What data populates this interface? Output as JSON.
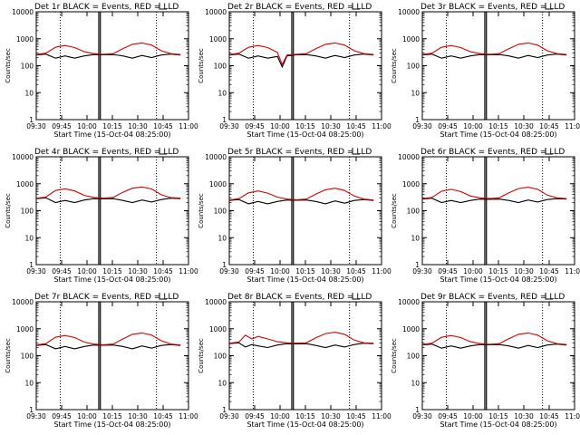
{
  "colors": {
    "events": "#000000",
    "lld": "#d40000",
    "frame": "#000000",
    "background": "#ffffff"
  },
  "common": {
    "xlabel": "Start Time (15-Oct-04 08:25:00)",
    "ylabel": "Counts/sec",
    "y_ticks": [
      "1",
      "10",
      "100",
      "1000",
      "10000"
    ],
    "x_ticks_a": [
      "09:30",
      "09:45",
      "10:00",
      "10:15",
      "10:30",
      "10:45",
      "11:00"
    ],
    "x_ticks_b": [
      "09:30",
      "09:45",
      "10:00",
      "10:15",
      "10:30",
      "10:45",
      "11:00"
    ]
  },
  "chart_data": [
    {
      "type": "line",
      "title": "Det 1r BLACK = Events, RED = LLD",
      "tickset": "x_ticks_a",
      "yscale": "log",
      "ylim": [
        1,
        10000
      ],
      "xlim_minutes": [
        570,
        665
      ],
      "vlines_dotted": [
        "09:45",
        "10:45"
      ],
      "vlines_solid": [
        "10:09",
        "10:10"
      ],
      "series": [
        {
          "name": "Events",
          "color": "#000000",
          "x": [
            "09:30",
            "09:36",
            "09:42",
            "09:48",
            "09:54",
            "10:00",
            "10:06",
            "10:12",
            "10:18",
            "10:24",
            "10:30",
            "10:36",
            "10:42",
            "10:48",
            "10:54",
            "11:00"
          ],
          "values": [
            250,
            270,
            190,
            230,
            190,
            230,
            260,
            255,
            260,
            230,
            190,
            240,
            200,
            250,
            270,
            250
          ]
        },
        {
          "name": "LLD",
          "color": "#d40000",
          "x": [
            "09:30",
            "09:36",
            "09:42",
            "09:48",
            "09:54",
            "10:00",
            "10:06",
            "10:12",
            "10:18",
            "10:24",
            "10:30",
            "10:36",
            "10:42",
            "10:48",
            "10:54",
            "11:00"
          ],
          "values": [
            260,
            290,
            480,
            560,
            470,
            330,
            280,
            265,
            280,
            430,
            620,
            700,
            580,
            360,
            280,
            260
          ]
        }
      ]
    },
    {
      "type": "line",
      "title": "Det 2r BLACK = Events, RED = LLD",
      "tickset": "x_ticks_a",
      "yscale": "log",
      "ylim": [
        1,
        10000
      ],
      "xlim_minutes": [
        570,
        665
      ],
      "vlines_dotted": [
        "09:45",
        "10:45"
      ],
      "vlines_solid": [
        "10:09",
        "10:10"
      ],
      "series": [
        {
          "name": "Events",
          "color": "#000000",
          "x": [
            "09:30",
            "09:36",
            "09:42",
            "09:48",
            "09:54",
            "10:00",
            "10:03",
            "10:06",
            "10:12",
            "10:18",
            "10:24",
            "10:30",
            "10:36",
            "10:42",
            "10:48",
            "10:54",
            "11:00"
          ],
          "values": [
            250,
            270,
            190,
            230,
            190,
            220,
            90,
            230,
            255,
            260,
            230,
            190,
            240,
            200,
            250,
            270,
            250
          ]
        },
        {
          "name": "LLD",
          "color": "#d40000",
          "x": [
            "09:30",
            "09:36",
            "09:42",
            "09:48",
            "09:54",
            "10:00",
            "10:03",
            "10:06",
            "10:12",
            "10:18",
            "10:24",
            "10:30",
            "10:36",
            "10:42",
            "10:48",
            "10:54",
            "11:00"
          ],
          "values": [
            260,
            290,
            480,
            560,
            470,
            310,
            110,
            250,
            265,
            280,
            430,
            620,
            700,
            580,
            360,
            280,
            260
          ]
        }
      ]
    },
    {
      "type": "line",
      "title": "Det 3r BLACK = Events, RED = LLD",
      "tickset": "x_ticks_b",
      "yscale": "log",
      "ylim": [
        1,
        10000
      ],
      "xlim_minutes": [
        570,
        665
      ],
      "vlines_dotted": [
        "09:45",
        "10:45"
      ],
      "vlines_solid": [
        "10:09",
        "10:10"
      ],
      "series": [
        {
          "name": "Events",
          "color": "#000000",
          "x": [
            "09:30",
            "09:36",
            "09:42",
            "09:48",
            "09:54",
            "10:00",
            "10:06",
            "10:12",
            "10:18",
            "10:24",
            "10:30",
            "10:36",
            "10:42",
            "10:48",
            "10:54",
            "11:00"
          ],
          "values": [
            250,
            270,
            190,
            230,
            190,
            230,
            260,
            255,
            260,
            230,
            190,
            240,
            200,
            250,
            270,
            250
          ]
        },
        {
          "name": "LLD",
          "color": "#d40000",
          "x": [
            "09:30",
            "09:36",
            "09:42",
            "09:48",
            "09:54",
            "10:00",
            "10:06",
            "10:12",
            "10:18",
            "10:24",
            "10:30",
            "10:36",
            "10:42",
            "10:48",
            "10:54",
            "11:00"
          ],
          "values": [
            260,
            290,
            480,
            560,
            470,
            330,
            280,
            265,
            280,
            430,
            620,
            700,
            580,
            360,
            280,
            260
          ]
        }
      ]
    },
    {
      "type": "line",
      "title": "Det 4r BLACK = Events, RED = LLD",
      "tickset": "x_ticks_a",
      "yscale": "log",
      "ylim": [
        1,
        10000
      ],
      "xlim_minutes": [
        570,
        665
      ],
      "vlines_dotted": [
        "09:45",
        "10:45"
      ],
      "vlines_solid": [
        "10:09",
        "10:10"
      ],
      "series": [
        {
          "name": "Events",
          "color": "#000000",
          "x": [
            "09:30",
            "09:36",
            "09:42",
            "09:48",
            "09:54",
            "10:00",
            "10:06",
            "10:12",
            "10:18",
            "10:24",
            "10:30",
            "10:36",
            "10:42",
            "10:48",
            "10:54",
            "11:00"
          ],
          "values": [
            280,
            300,
            200,
            240,
            200,
            250,
            280,
            275,
            280,
            240,
            200,
            250,
            210,
            260,
            290,
            280
          ]
        },
        {
          "name": "LLD",
          "color": "#d40000",
          "x": [
            "09:30",
            "09:36",
            "09:42",
            "09:48",
            "09:54",
            "10:00",
            "10:06",
            "10:12",
            "10:18",
            "10:24",
            "10:30",
            "10:36",
            "10:42",
            "10:48",
            "10:54",
            "11:00"
          ],
          "values": [
            290,
            320,
            560,
            650,
            540,
            370,
            310,
            295,
            310,
            480,
            680,
            760,
            640,
            390,
            305,
            290
          ]
        }
      ]
    },
    {
      "type": "line",
      "title": "Det 5r BLACK = Events, RED = LLD",
      "tickset": "x_ticks_a",
      "yscale": "log",
      "ylim": [
        1,
        10000
      ],
      "xlim_minutes": [
        570,
        665
      ],
      "vlines_dotted": [
        "09:45",
        "10:45"
      ],
      "vlines_solid": [
        "10:09",
        "10:10"
      ],
      "series": [
        {
          "name": "Events",
          "color": "#000000",
          "x": [
            "09:30",
            "09:36",
            "09:42",
            "09:48",
            "09:54",
            "10:00",
            "10:06",
            "10:12",
            "10:18",
            "10:24",
            "10:30",
            "10:36",
            "10:42",
            "10:48",
            "10:54",
            "11:00"
          ],
          "values": [
            240,
            260,
            180,
            220,
            180,
            220,
            250,
            245,
            250,
            220,
            180,
            230,
            190,
            240,
            260,
            240
          ]
        },
        {
          "name": "LLD",
          "color": "#d40000",
          "x": [
            "09:30",
            "09:36",
            "09:42",
            "09:48",
            "09:54",
            "10:00",
            "10:06",
            "10:12",
            "10:18",
            "10:24",
            "10:30",
            "10:36",
            "10:42",
            "10:48",
            "10:54",
            "11:00"
          ],
          "values": [
            250,
            280,
            460,
            540,
            450,
            320,
            270,
            255,
            270,
            410,
            600,
            680,
            560,
            350,
            270,
            250
          ]
        }
      ]
    },
    {
      "type": "line",
      "title": "Det 6r BLACK = Events, RED = LLD",
      "tickset": "x_ticks_b",
      "yscale": "log",
      "ylim": [
        1,
        10000
      ],
      "xlim_minutes": [
        570,
        665
      ],
      "vlines_dotted": [
        "09:45",
        "10:45"
      ],
      "vlines_solid": [
        "10:09",
        "10:10"
      ],
      "series": [
        {
          "name": "Events",
          "color": "#000000",
          "x": [
            "09:30",
            "09:36",
            "09:42",
            "09:48",
            "09:54",
            "10:00",
            "10:06",
            "10:12",
            "10:18",
            "10:24",
            "10:30",
            "10:36",
            "10:42",
            "10:48",
            "10:54",
            "11:00"
          ],
          "values": [
            270,
            290,
            200,
            240,
            200,
            240,
            270,
            265,
            270,
            240,
            200,
            250,
            210,
            260,
            280,
            270
          ]
        },
        {
          "name": "LLD",
          "color": "#d40000",
          "x": [
            "09:30",
            "09:36",
            "09:42",
            "09:48",
            "09:54",
            "10:00",
            "10:06",
            "10:12",
            "10:18",
            "10:24",
            "10:30",
            "10:36",
            "10:42",
            "10:48",
            "10:54",
            "11:00"
          ],
          "values": [
            280,
            310,
            530,
            620,
            510,
            350,
            300,
            285,
            300,
            460,
            660,
            740,
            620,
            380,
            300,
            280
          ]
        }
      ]
    },
    {
      "type": "line",
      "title": "Det 7r BLACK = Events, RED = LLD",
      "tickset": "x_ticks_a",
      "yscale": "log",
      "ylim": [
        1,
        10000
      ],
      "xlim_minutes": [
        570,
        665
      ],
      "vlines_dotted": [
        "09:45",
        "10:45"
      ],
      "vlines_solid": [
        "10:09",
        "10:10"
      ],
      "series": [
        {
          "name": "Events",
          "color": "#000000",
          "x": [
            "09:30",
            "09:36",
            "09:42",
            "09:48",
            "09:54",
            "10:00",
            "10:06",
            "10:12",
            "10:18",
            "10:24",
            "10:30",
            "10:36",
            "10:42",
            "10:48",
            "10:54",
            "11:00"
          ],
          "values": [
            240,
            260,
            180,
            220,
            180,
            220,
            250,
            245,
            250,
            220,
            180,
            230,
            190,
            240,
            260,
            240
          ]
        },
        {
          "name": "LLD",
          "color": "#d40000",
          "x": [
            "09:30",
            "09:36",
            "09:42",
            "09:48",
            "09:54",
            "10:00",
            "10:06",
            "10:12",
            "10:18",
            "10:24",
            "10:30",
            "10:36",
            "10:42",
            "10:48",
            "10:54",
            "11:00"
          ],
          "values": [
            250,
            280,
            480,
            560,
            470,
            320,
            270,
            255,
            270,
            420,
            620,
            700,
            580,
            360,
            270,
            250
          ]
        }
      ]
    },
    {
      "type": "line",
      "title": "Det 8r BLACK = Events, RED = LLD",
      "tickset": "x_ticks_a",
      "yscale": "log",
      "ylim": [
        1,
        10000
      ],
      "xlim_minutes": [
        570,
        665
      ],
      "vlines_dotted": [
        "09:45",
        "10:45"
      ],
      "vlines_solid": [
        "10:09",
        "10:10"
      ],
      "series": [
        {
          "name": "Events",
          "color": "#000000",
          "x": [
            "09:30",
            "09:36",
            "09:40",
            "09:44",
            "09:48",
            "09:54",
            "10:00",
            "10:06",
            "10:12",
            "10:18",
            "10:24",
            "10:30",
            "10:36",
            "10:42",
            "10:48",
            "10:54",
            "11:00"
          ],
          "values": [
            280,
            300,
            210,
            260,
            230,
            200,
            250,
            280,
            275,
            280,
            240,
            200,
            250,
            210,
            260,
            290,
            280
          ]
        },
        {
          "name": "LLD",
          "color": "#d40000",
          "x": [
            "09:30",
            "09:36",
            "09:40",
            "09:44",
            "09:48",
            "09:54",
            "10:00",
            "10:06",
            "10:12",
            "10:18",
            "10:24",
            "10:30",
            "10:36",
            "10:42",
            "10:48",
            "10:54",
            "11:00"
          ],
          "values": [
            290,
            320,
            580,
            420,
            520,
            420,
            330,
            300,
            290,
            300,
            460,
            660,
            740,
            620,
            380,
            300,
            290
          ]
        }
      ]
    },
    {
      "type": "line",
      "title": "Det 9r BLACK = Events, RED = LLD",
      "tickset": "x_ticks_b",
      "yscale": "log",
      "ylim": [
        1,
        10000
      ],
      "xlim_minutes": [
        570,
        665
      ],
      "vlines_dotted": [
        "09:45",
        "10:45"
      ],
      "vlines_solid": [
        "10:09",
        "10:10"
      ],
      "series": [
        {
          "name": "Events",
          "color": "#000000",
          "x": [
            "09:30",
            "09:36",
            "09:42",
            "09:48",
            "09:54",
            "10:00",
            "10:06",
            "10:12",
            "10:18",
            "10:24",
            "10:30",
            "10:36",
            "10:42",
            "10:48",
            "10:54",
            "11:00"
          ],
          "values": [
            250,
            270,
            190,
            230,
            190,
            230,
            260,
            255,
            260,
            230,
            190,
            240,
            200,
            250,
            270,
            250
          ]
        },
        {
          "name": "LLD",
          "color": "#d40000",
          "x": [
            "09:30",
            "09:36",
            "09:42",
            "09:48",
            "09:54",
            "10:00",
            "10:06",
            "10:12",
            "10:18",
            "10:24",
            "10:30",
            "10:36",
            "10:42",
            "10:48",
            "10:54",
            "11:00"
          ],
          "values": [
            260,
            290,
            480,
            560,
            470,
            330,
            280,
            265,
            280,
            430,
            620,
            700,
            580,
            360,
            280,
            260
          ]
        }
      ]
    }
  ]
}
